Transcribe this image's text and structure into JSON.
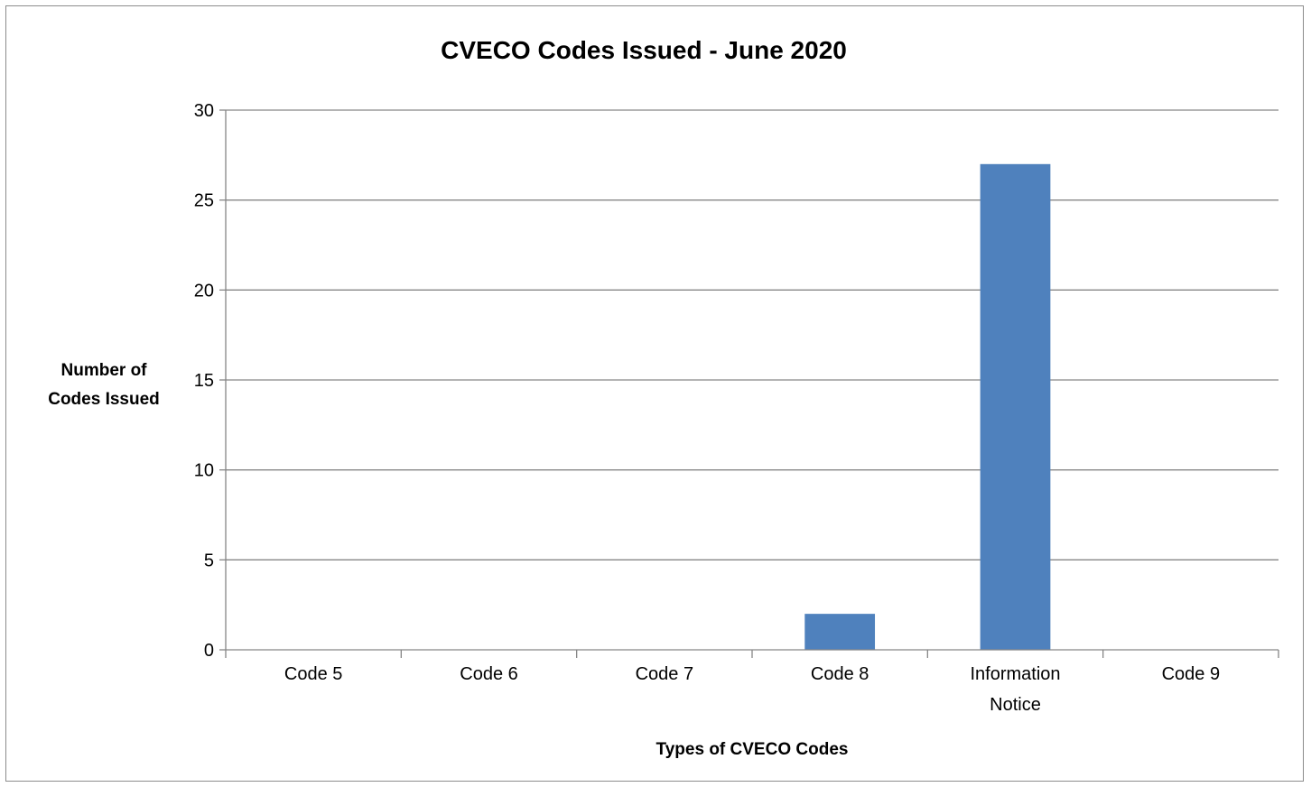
{
  "chart_data": {
    "type": "bar",
    "title": "CVECO Codes Issued - June 2020",
    "xlabel": "Types of CVECO Codes",
    "ylabel": [
      "Number of",
      "Codes Issued"
    ],
    "categories": [
      [
        "Code 5"
      ],
      [
        "Code 6"
      ],
      [
        "Code 7"
      ],
      [
        "Code 8"
      ],
      [
        "Information",
        "Notice"
      ],
      [
        "Code 9"
      ]
    ],
    "values": [
      0,
      0,
      0,
      2,
      27,
      0
    ],
    "ylim": [
      0,
      30
    ],
    "yticks": [
      0,
      5,
      10,
      15,
      20,
      25,
      30
    ],
    "grid": true,
    "legend": "none",
    "colors": {
      "bar": "#4f81bd",
      "grid": "#868686",
      "axis": "#868686",
      "frame": "#8c8c8c",
      "text": "#000000"
    }
  }
}
